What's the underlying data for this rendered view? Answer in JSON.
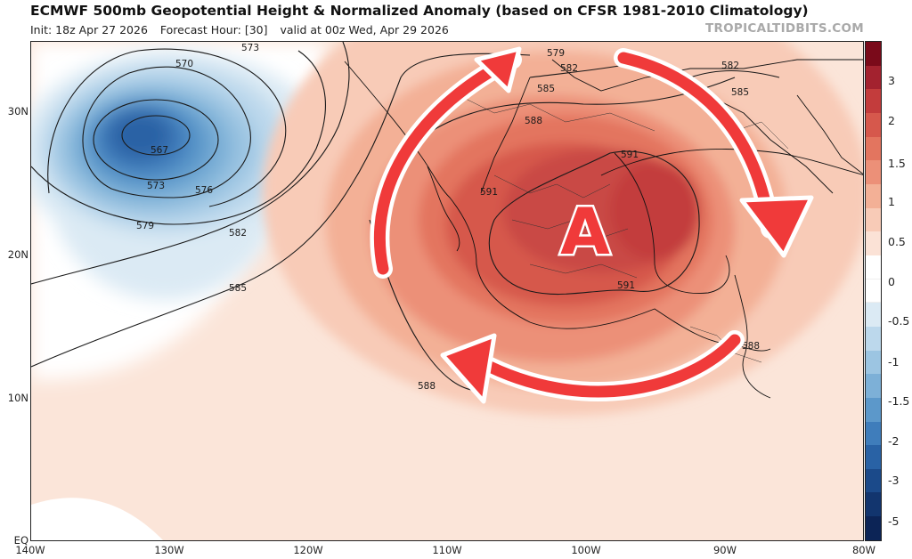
{
  "header": {
    "title": "ECMWF 500mb Geopotential Height & Normalized Anomaly (based on CFSR 1981-2010 Climatology)",
    "init": "Init: 18z Apr 27 2026",
    "forecast_hour": "Forecast Hour: [30]",
    "valid": "valid at 00z Wed, Apr 29 2026",
    "credit": "TROPICALTIDBITS.COM"
  },
  "map": {
    "lat_ticks": [
      "30N",
      "20N",
      "10N",
      "EQ"
    ],
    "lon_ticks": [
      "140W",
      "130W",
      "120W",
      "110W",
      "100W",
      "90W",
      "80W"
    ],
    "center_marker": "A",
    "arrow_color": "#f03a3a",
    "contours": [
      {
        "label": "570"
      },
      {
        "label": "567"
      },
      {
        "label": "573"
      },
      {
        "label": "573"
      },
      {
        "label": "576"
      },
      {
        "label": "579"
      },
      {
        "label": "579"
      },
      {
        "label": "582"
      },
      {
        "label": "582"
      },
      {
        "label": "582"
      },
      {
        "label": "585"
      },
      {
        "label": "585"
      },
      {
        "label": "585"
      },
      {
        "label": "588"
      },
      {
        "label": "588"
      },
      {
        "label": "588"
      },
      {
        "label": "591"
      },
      {
        "label": "591"
      },
      {
        "label": "591"
      }
    ]
  },
  "colorbar": {
    "labels": [
      "3",
      "2",
      "1.5",
      "1",
      "0.5",
      "0",
      "-0.5",
      "-1",
      "-1.5",
      "-2",
      "-3",
      "-5"
    ],
    "colors": [
      "#7a0a1a",
      "#a3222f",
      "#c33c3c",
      "#d6584c",
      "#e3755f",
      "#ec9078",
      "#f3b096",
      "#f8cbb7",
      "#fbe2d6",
      "#ffffff",
      "#ffffff",
      "#dbeaf4",
      "#bcd8ec",
      "#9cc5e2",
      "#7db0d7",
      "#5c98ca",
      "#3f7dbb",
      "#2962a5",
      "#1b4a8a",
      "#12356e",
      "#0c2456"
    ]
  }
}
